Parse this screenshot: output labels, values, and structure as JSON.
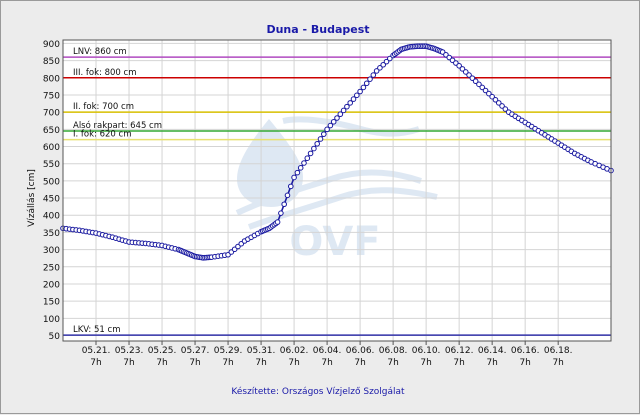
{
  "chart_data": {
    "type": "line",
    "title": "Duna - Budapest",
    "ylabel": "Vízállás [cm]",
    "xlabel": "",
    "footer": "Készítette: Országos Vízjelző Szolgálat",
    "watermark": "OVF",
    "ylim": [
      34,
      910
    ],
    "yticks": [
      50,
      100,
      150,
      200,
      250,
      300,
      350,
      400,
      450,
      500,
      550,
      600,
      650,
      700,
      750,
      800,
      850,
      900
    ],
    "xlim": [
      0,
      33.2
    ],
    "xticks": [
      {
        "x": 2,
        "date": "05.21.",
        "hour": "7h"
      },
      {
        "x": 4,
        "date": "05.23.",
        "hour": "7h"
      },
      {
        "x": 6,
        "date": "05.25.",
        "hour": "7h"
      },
      {
        "x": 8,
        "date": "05.27.",
        "hour": "7h"
      },
      {
        "x": 10,
        "date": "05.29.",
        "hour": "7h"
      },
      {
        "x": 12,
        "date": "05.31.",
        "hour": "7h"
      },
      {
        "x": 14,
        "date": "06.02.",
        "hour": "7h"
      },
      {
        "x": 16,
        "date": "06.04.",
        "hour": "7h"
      },
      {
        "x": 18,
        "date": "06.06.",
        "hour": "7h"
      },
      {
        "x": 20,
        "date": "06.08.",
        "hour": "7h"
      },
      {
        "x": 22,
        "date": "06.10.",
        "hour": "7h"
      },
      {
        "x": 24,
        "date": "06.12.",
        "hour": "7h"
      },
      {
        "x": 26,
        "date": "06.14.",
        "hour": "7h"
      },
      {
        "x": 28,
        "date": "06.16.",
        "hour": "7h"
      },
      {
        "x": 30,
        "date": "06.18.",
        "hour": "7h"
      }
    ],
    "reference_lines": [
      {
        "label": "LNV: 860 cm",
        "value": 860,
        "color": "#b04ac0"
      },
      {
        "label": "III. fok: 800 cm",
        "value": 800,
        "color": "#cc0000"
      },
      {
        "label": "II. fok: 700 cm",
        "value": 700,
        "color": "#d8c000"
      },
      {
        "label": "Alsó rakpart: 645 cm",
        "value": 645,
        "color": "#33a833"
      },
      {
        "label": "I. fok: 620 cm",
        "value": 620,
        "color": "#e8e070"
      },
      {
        "label": "LKV: 51 cm",
        "value": 51,
        "color": "#3333aa"
      }
    ],
    "series": [
      {
        "color": "#1a1aa0",
        "x": [
          0,
          1,
          2,
          3,
          4,
          5,
          6,
          7,
          7.5,
          8,
          8.5,
          9,
          10,
          11,
          12,
          12.5,
          13,
          14,
          15,
          16,
          17,
          18,
          19,
          20,
          20.5,
          21,
          21.5,
          22,
          22.5,
          23,
          24,
          25,
          26,
          27,
          28,
          29,
          30,
          31,
          32,
          33.2
        ],
        "y": [
          362,
          356,
          348,
          336,
          322,
          318,
          312,
          300,
          290,
          280,
          276,
          278,
          285,
          325,
          352,
          362,
          380,
          510,
          580,
          650,
          705,
          760,
          820,
          865,
          883,
          890,
          892,
          892,
          885,
          875,
          835,
          790,
          745,
          700,
          670,
          640,
          610,
          580,
          555,
          530
        ]
      }
    ]
  },
  "colors": {
    "background": "#ececec",
    "plot_background": "#ffffff",
    "grid": "#d4d4d4",
    "title": "#1a1aa8",
    "series": "#1a1aa0"
  }
}
